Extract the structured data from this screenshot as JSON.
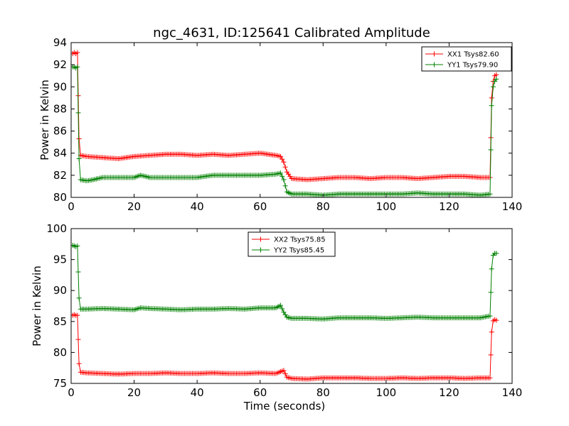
{
  "title": "ngc_4631, ID:125641 Calibrated Amplitude",
  "chart_data": [
    {
      "type": "line",
      "title": "ngc_4631, ID:125641 Calibrated Amplitude",
      "xlabel": "",
      "ylabel": "Power in Kelvin",
      "xlim": [
        0,
        140
      ],
      "ylim": [
        80,
        94
      ],
      "xticks": [
        0,
        20,
        40,
        60,
        80,
        100,
        120,
        140
      ],
      "yticks": [
        80,
        82,
        84,
        86,
        88,
        90,
        92,
        94
      ],
      "grid": false,
      "legend_position": "top-right",
      "series": [
        {
          "name": "XX1 Tsys82.60",
          "color": "#ff0000",
          "marker": "+",
          "segments": [
            [
              [
                0.5,
                93.0
              ],
              [
                1.0,
                93.1
              ],
              [
                1.5,
                93.0
              ],
              [
                2.0,
                93.1
              ]
            ],
            [
              [
                2.5,
                85.3
              ],
              [
                3,
                83.8
              ],
              [
                5,
                83.7
              ],
              [
                10,
                83.6
              ],
              [
                15,
                83.5
              ],
              [
                20,
                83.7
              ],
              [
                25,
                83.8
              ],
              [
                30,
                83.9
              ],
              [
                35,
                83.9
              ],
              [
                40,
                83.8
              ],
              [
                45,
                83.9
              ],
              [
                50,
                83.8
              ],
              [
                55,
                83.9
              ],
              [
                60,
                84.0
              ],
              [
                65,
                83.8
              ],
              [
                66.5,
                83.7
              ],
              [
                67.5,
                83.2
              ],
              [
                68.5,
                82.3
              ],
              [
                70,
                81.7
              ],
              [
                75,
                81.6
              ],
              [
                80,
                81.7
              ],
              [
                85,
                81.8
              ],
              [
                90,
                81.8
              ],
              [
                95,
                81.7
              ],
              [
                100,
                81.8
              ],
              [
                105,
                81.8
              ],
              [
                110,
                81.7
              ],
              [
                115,
                81.8
              ],
              [
                120,
                81.9
              ],
              [
                125,
                81.9
              ],
              [
                130,
                81.8
              ],
              [
                133,
                81.8
              ]
            ],
            [
              [
                133.5,
                89.0
              ],
              [
                134.0,
                90.5
              ],
              [
                134.5,
                91.0
              ],
              [
                135.0,
                91.1
              ]
            ]
          ]
        },
        {
          "name": "YY1 Tsys79.90",
          "color": "#008000",
          "marker": "+",
          "segments": [
            [
              [
                0.5,
                91.8
              ],
              [
                1.0,
                91.8
              ],
              [
                1.5,
                91.7
              ],
              [
                2.0,
                91.8
              ]
            ],
            [
              [
                2.5,
                83.5
              ],
              [
                3,
                81.6
              ],
              [
                5,
                81.5
              ],
              [
                7,
                81.6
              ],
              [
                10,
                81.8
              ],
              [
                15,
                81.8
              ],
              [
                20,
                81.8
              ],
              [
                22,
                82.0
              ],
              [
                25,
                81.8
              ],
              [
                30,
                81.8
              ],
              [
                35,
                81.8
              ],
              [
                40,
                81.8
              ],
              [
                45,
                82.0
              ],
              [
                50,
                82.0
              ],
              [
                55,
                82.0
              ],
              [
                60,
                82.0
              ],
              [
                65,
                82.1
              ],
              [
                66.5,
                82.2
              ],
              [
                67.5,
                81.6
              ],
              [
                68.5,
                80.5
              ],
              [
                70,
                80.3
              ],
              [
                75,
                80.3
              ],
              [
                80,
                80.2
              ],
              [
                85,
                80.3
              ],
              [
                90,
                80.3
              ],
              [
                95,
                80.3
              ],
              [
                100,
                80.3
              ],
              [
                105,
                80.3
              ],
              [
                110,
                80.4
              ],
              [
                115,
                80.3
              ],
              [
                120,
                80.3
              ],
              [
                125,
                80.3
              ],
              [
                130,
                80.2
              ],
              [
                133,
                80.3
              ]
            ],
            [
              [
                133.5,
                88.3
              ],
              [
                134.0,
                90.0
              ],
              [
                134.5,
                90.5
              ],
              [
                135.0,
                90.7
              ]
            ]
          ]
        }
      ]
    },
    {
      "type": "line",
      "title": "",
      "xlabel": "Time (seconds)",
      "ylabel": "Power in Kelvin",
      "xlim": [
        0,
        140
      ],
      "ylim": [
        75,
        100
      ],
      "xticks": [
        0,
        20,
        40,
        60,
        80,
        100,
        120,
        140
      ],
      "yticks": [
        75,
        80,
        85,
        90,
        95,
        100
      ],
      "grid": false,
      "legend_position": "top-center",
      "series": [
        {
          "name": "XX2 Tsys75.85",
          "color": "#ff0000",
          "marker": "+",
          "segments": [
            [
              [
                0.5,
                86.0
              ],
              [
                1.0,
                86.1
              ],
              [
                1.5,
                86.0
              ],
              [
                2.0,
                86.0
              ]
            ],
            [
              [
                2.5,
                78.2
              ],
              [
                3,
                76.8
              ],
              [
                5,
                76.7
              ],
              [
                10,
                76.6
              ],
              [
                15,
                76.5
              ],
              [
                20,
                76.6
              ],
              [
                25,
                76.6
              ],
              [
                30,
                76.7
              ],
              [
                35,
                76.6
              ],
              [
                40,
                76.6
              ],
              [
                45,
                76.7
              ],
              [
                50,
                76.6
              ],
              [
                55,
                76.6
              ],
              [
                60,
                76.7
              ],
              [
                65,
                76.6
              ],
              [
                66.5,
                76.9
              ],
              [
                67.5,
                77.1
              ],
              [
                68.5,
                76.0
              ],
              [
                70,
                75.8
              ],
              [
                75,
                75.7
              ],
              [
                80,
                75.9
              ],
              [
                85,
                75.9
              ],
              [
                90,
                75.9
              ],
              [
                95,
                75.8
              ],
              [
                100,
                75.8
              ],
              [
                105,
                75.9
              ],
              [
                110,
                75.8
              ],
              [
                115,
                75.9
              ],
              [
                120,
                75.9
              ],
              [
                125,
                75.8
              ],
              [
                130,
                75.9
              ],
              [
                133,
                75.9
              ]
            ],
            [
              [
                133.5,
                83.3
              ],
              [
                134.0,
                85.1
              ],
              [
                134.5,
                85.3
              ],
              [
                135.0,
                85.2
              ]
            ]
          ]
        },
        {
          "name": "YY2 Tsys85.45",
          "color": "#008000",
          "marker": "+",
          "segments": [
            [
              [
                0.5,
                97.3
              ],
              [
                1.0,
                97.2
              ],
              [
                1.5,
                97.1
              ],
              [
                2.0,
                97.2
              ]
            ],
            [
              [
                2.5,
                88.8
              ],
              [
                3,
                87.0
              ],
              [
                5,
                87.0
              ],
              [
                10,
                87.1
              ],
              [
                15,
                87.0
              ],
              [
                20,
                86.9
              ],
              [
                22,
                87.2
              ],
              [
                25,
                87.1
              ],
              [
                30,
                87.0
              ],
              [
                35,
                86.9
              ],
              [
                40,
                87.0
              ],
              [
                45,
                87.0
              ],
              [
                50,
                87.1
              ],
              [
                55,
                87.0
              ],
              [
                60,
                87.2
              ],
              [
                65,
                87.2
              ],
              [
                66.5,
                87.6
              ],
              [
                67.5,
                86.5
              ],
              [
                68.5,
                85.7
              ],
              [
                70,
                85.5
              ],
              [
                75,
                85.5
              ],
              [
                80,
                85.4
              ],
              [
                85,
                85.6
              ],
              [
                90,
                85.6
              ],
              [
                95,
                85.6
              ],
              [
                100,
                85.5
              ],
              [
                105,
                85.6
              ],
              [
                110,
                85.7
              ],
              [
                115,
                85.6
              ],
              [
                120,
                85.6
              ],
              [
                125,
                85.6
              ],
              [
                130,
                85.6
              ],
              [
                133,
                85.9
              ]
            ],
            [
              [
                133.5,
                93.5
              ],
              [
                134.0,
                95.7
              ],
              [
                134.5,
                96.0
              ],
              [
                135.0,
                96.0
              ]
            ]
          ]
        }
      ]
    }
  ]
}
